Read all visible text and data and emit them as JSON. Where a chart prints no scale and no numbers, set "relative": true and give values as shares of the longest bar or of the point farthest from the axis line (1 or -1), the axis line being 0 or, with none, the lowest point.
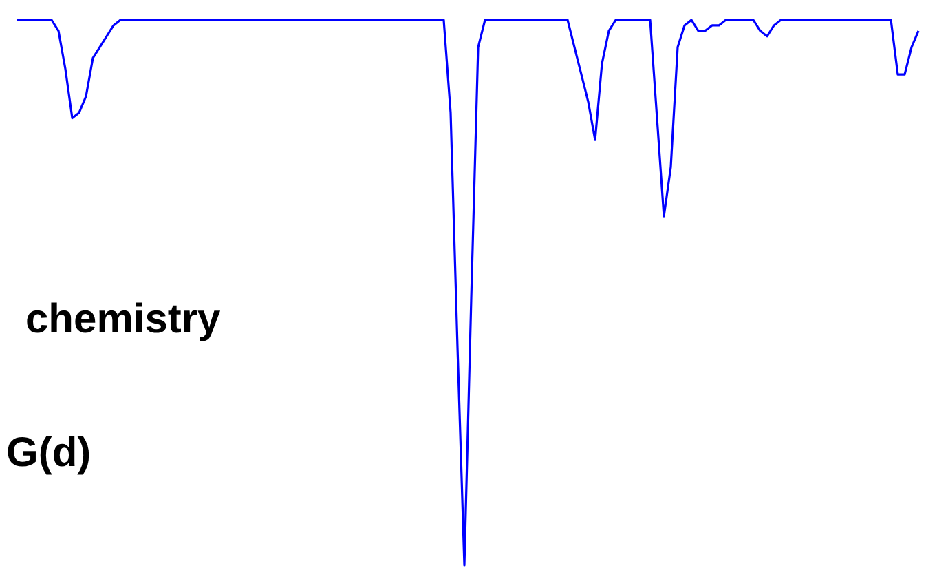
{
  "chart_data": {
    "type": "line",
    "relative": true,
    "categories": [
      null,
      null,
      null,
      null,
      null,
      null,
      null,
      null,
      null,
      null,
      null,
      null,
      null,
      null,
      null,
      null,
      null,
      null,
      null,
      null,
      null,
      null,
      null,
      null,
      null,
      null,
      null,
      null,
      null,
      null,
      null,
      null,
      null,
      null,
      null,
      null,
      null,
      null,
      null,
      null,
      null,
      null,
      null,
      null,
      null,
      null,
      null,
      null,
      null,
      null,
      null,
      null,
      null,
      null,
      null,
      null,
      null,
      null,
      null,
      null,
      null,
      null,
      null,
      null,
      null,
      null,
      null,
      null,
      null,
      null,
      null,
      null,
      null,
      null,
      null,
      null,
      null,
      null,
      null,
      null,
      null,
      null,
      null,
      null,
      null,
      null,
      null,
      null,
      null,
      null,
      null,
      null,
      null,
      null,
      null,
      null,
      null,
      null,
      null,
      null,
      null,
      null,
      null,
      null,
      null,
      null,
      null,
      null,
      null,
      null,
      null,
      null,
      null,
      null,
      null,
      null,
      null,
      null,
      null,
      null,
      null,
      null,
      null,
      null,
      null,
      null,
      null,
      null,
      null,
      null,
      null,
      null
    ],
    "series": [
      {
        "color": "#0000ff",
        "values": [
          1,
          1,
          1,
          1,
          1,
          1,
          0.98,
          0.91,
          0.82,
          0.83,
          0.86,
          0.93,
          0.95,
          0.97,
          0.99,
          1,
          1,
          1,
          1,
          1,
          1,
          1,
          1,
          1,
          1,
          1,
          1,
          1,
          1,
          1,
          1,
          1,
          1,
          1,
          1,
          1,
          1,
          1,
          1,
          1,
          1,
          1,
          1,
          1,
          1,
          1,
          1,
          1,
          1,
          1,
          1,
          1,
          1,
          1,
          1,
          1,
          1,
          1,
          1,
          1,
          1,
          1,
          1,
          0.83,
          0.4,
          0,
          0.49,
          0.95,
          1,
          1,
          1,
          1,
          1,
          1,
          1,
          1,
          1,
          1,
          1,
          1,
          1,
          0.95,
          0.9,
          0.85,
          0.78,
          0.92,
          0.98,
          1,
          1,
          1,
          1,
          1,
          1,
          0.82,
          0.64,
          0.73,
          0.95,
          0.99,
          1,
          0.98,
          0.98,
          0.99,
          0.99,
          1,
          1,
          1,
          1,
          1,
          0.98,
          0.97,
          0.99,
          1,
          1,
          1,
          1,
          1,
          1,
          1,
          1,
          1,
          1,
          1,
          1,
          1,
          1,
          1,
          1,
          1,
          0.9,
          0.9,
          0.95,
          0.98
        ]
      }
    ],
    "annotations": [
      "chemistry",
      "G(d)"
    ],
    "line_style": "solid",
    "marker": "none"
  }
}
